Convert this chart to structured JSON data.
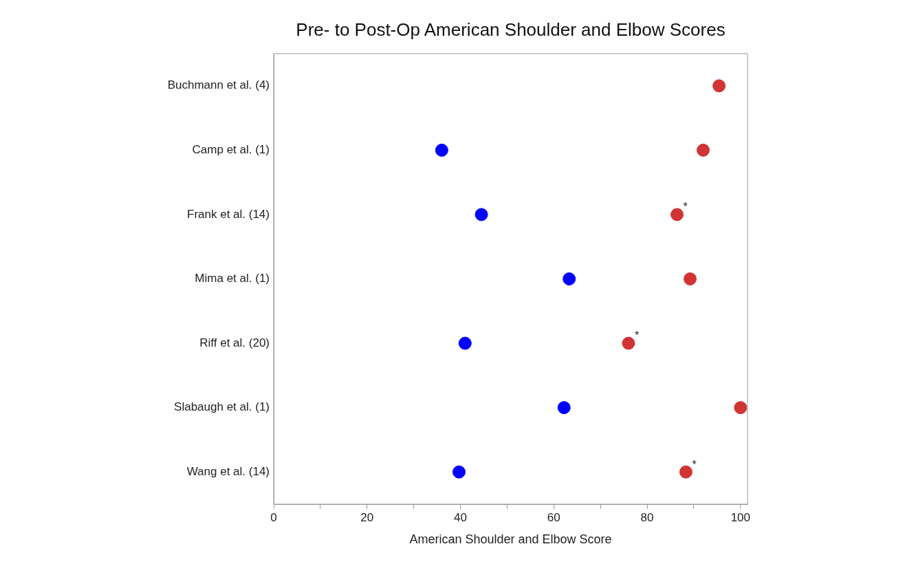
{
  "chart_data": {
    "type": "scatter",
    "title": "Pre- to Post-Op American Shoulder and Elbow Scores",
    "xlabel": "American Shoulder and Elbow Score",
    "categories": [
      "Buchmann et al. (4)",
      "Camp et al. (1)",
      "Frank et al. (14)",
      "Mima et al. (1)",
      "Riff et al. (20)",
      "Slabaugh et al. (1)",
      "Wang et al. (14)"
    ],
    "series": [
      {
        "color": "#0000ff",
        "values": [
          null,
          36.0,
          44.5,
          63.3,
          41.0,
          62.2,
          39.7
        ]
      },
      {
        "color": "#d03434",
        "values": [
          95.4,
          92.0,
          86.4,
          89.2,
          76.0,
          100,
          88.3
        ]
      }
    ],
    "orientation": "horizontal",
    "xlim": [
      0,
      101.5
    ],
    "xticks": [
      0,
      {
        "value": 10,
        "label": null
      },
      20,
      {
        "value": 30,
        "label": null
      },
      40,
      {
        "value": 50,
        "label": null
      },
      60,
      {
        "value": 70,
        "label": null
      },
      80,
      {
        "value": 90,
        "label": null
      },
      100
    ],
    "marker": "circle",
    "grid": false,
    "legend": false,
    "annotations": [
      {
        "text": "*",
        "x": 86.4,
        "y": "Frank et al. (14)"
      },
      {
        "text": "*",
        "x": 76.0,
        "y": "Riff et al. (20)"
      },
      {
        "text": "*",
        "x": 88.3,
        "y": "Wang et al. (14)"
      }
    ]
  }
}
